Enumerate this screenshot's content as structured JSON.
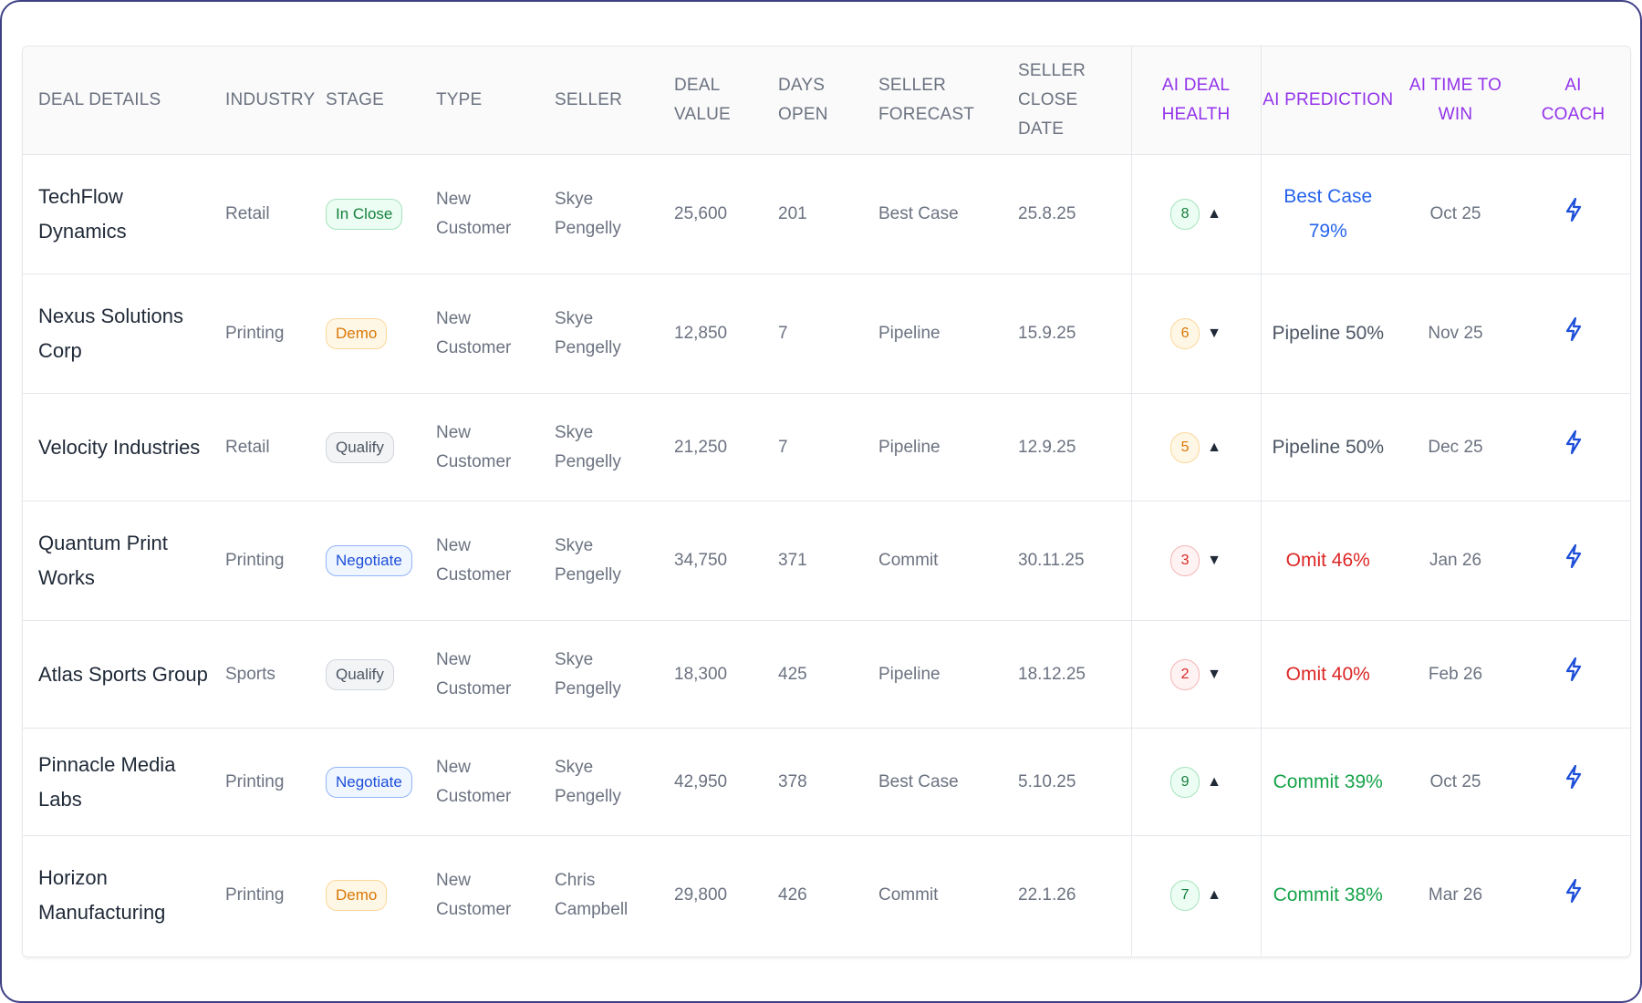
{
  "columns": {
    "deal_details": "DEAL DETAILS",
    "industry": "INDUSTRY",
    "stage": "STAGE",
    "type": "TYPE",
    "seller": "SELLER",
    "deal_value_1": "DEAL",
    "deal_value_2": "VALUE",
    "days_open_1": "DAYS",
    "days_open_2": "OPEN",
    "seller_forecast_1": "SELLER",
    "seller_forecast_2": "FORECAST",
    "seller_close_1": "SELLER CLOSE",
    "seller_close_2": "DATE",
    "ai_health_1": "AI DEAL",
    "ai_health_2": "HEALTH",
    "ai_prediction": "AI PREDICTION",
    "ai_time_1": "AI TIME TO",
    "ai_time_2": "WIN",
    "ai_coach_1": "AI",
    "ai_coach_2": "COACH"
  },
  "colors": {
    "ai_header": "#9333ea",
    "coach_icon": "#1d4ed8",
    "frame_border": "#3f3f86"
  },
  "rows": [
    {
      "deal_1": "TechFlow Dynamics",
      "deal_2": "",
      "industry": "Retail",
      "stage": "In Close",
      "stage_style": "green",
      "type_1": "New",
      "type_2": "Customer",
      "seller_1": "Skye Pengelly",
      "seller_2": "",
      "value": "25,600",
      "days": "201",
      "forecast": "Best Case",
      "close": "25.8.25",
      "health": "8",
      "health_style": "green",
      "trend": "up",
      "trend_glyph": "▲",
      "pred_1": "Best Case",
      "pred_2": "79%",
      "pred_style": "blue",
      "time": "Oct 25",
      "coach_icon": "lightning-bolt-icon"
    },
    {
      "deal_1": "Nexus Solutions",
      "deal_2": "Corp",
      "industry": "Printing",
      "stage": "Demo",
      "stage_style": "amber",
      "type_1": "New",
      "type_2": "Customer",
      "seller_1": "Skye Pengelly",
      "seller_2": "",
      "value": "12,850",
      "days": "7",
      "forecast": "Pipeline",
      "close": "15.9.25",
      "health": "6",
      "health_style": "amber",
      "trend": "down",
      "trend_glyph": "▼",
      "pred_1": "Pipeline 50%",
      "pred_2": "",
      "pred_style": "gray",
      "time": "Nov 25",
      "coach_icon": "lightning-bolt-icon"
    },
    {
      "deal_1": "Velocity Industries",
      "deal_2": "",
      "industry": "Retail",
      "stage": "Qualify",
      "stage_style": "gray",
      "type_1": "New",
      "type_2": "Customer",
      "seller_1": "Skye Pengelly",
      "seller_2": "",
      "value": "21,250",
      "days": "7",
      "forecast": "Pipeline",
      "close": "12.9.25",
      "health": "5",
      "health_style": "amber",
      "trend": "up",
      "trend_glyph": "▲",
      "pred_1": "Pipeline 50%",
      "pred_2": "",
      "pred_style": "gray",
      "time": "Dec 25",
      "coach_icon": "lightning-bolt-icon"
    },
    {
      "deal_1": "Quantum Print",
      "deal_2": "Works",
      "industry": "Printing",
      "stage": "Negotiate",
      "stage_style": "blue",
      "type_1": "New",
      "type_2": "Customer",
      "seller_1": "Skye Pengelly",
      "seller_2": "",
      "value": "34,750",
      "days": "371",
      "forecast": "Commit",
      "close": "30.11.25",
      "health": "3",
      "health_style": "red",
      "trend": "down",
      "trend_glyph": "▼",
      "pred_1": "Omit 46%",
      "pred_2": "",
      "pred_style": "red",
      "time": "Jan 26",
      "coach_icon": "lightning-bolt-icon"
    },
    {
      "deal_1": "Atlas Sports Group",
      "deal_2": "",
      "industry": "Sports",
      "stage": "Qualify",
      "stage_style": "gray",
      "type_1": "New",
      "type_2": "Customer",
      "seller_1": "Skye Pengelly",
      "seller_2": "",
      "value": "18,300",
      "days": "425",
      "forecast": "Pipeline",
      "close": "18.12.25",
      "health": "2",
      "health_style": "red",
      "trend": "down",
      "trend_glyph": "▼",
      "pred_1": "Omit 40%",
      "pred_2": "",
      "pred_style": "red",
      "time": "Feb 26",
      "coach_icon": "lightning-bolt-icon"
    },
    {
      "deal_1": "Pinnacle Media Labs",
      "deal_2": "",
      "industry": "Printing",
      "stage": "Negotiate",
      "stage_style": "blue",
      "type_1": "New",
      "type_2": "Customer",
      "seller_1": "Skye Pengelly",
      "seller_2": "",
      "value": "42,950",
      "days": "378",
      "forecast": "Best Case",
      "close": "5.10.25",
      "health": "9",
      "health_style": "green",
      "trend": "up",
      "trend_glyph": "▲",
      "pred_1": "Commit 39%",
      "pred_2": "",
      "pred_style": "green",
      "time": "Oct 25",
      "coach_icon": "lightning-bolt-icon"
    },
    {
      "deal_1": "Horizon",
      "deal_2": "Manufacturing",
      "industry": "Printing",
      "stage": "Demo",
      "stage_style": "amber",
      "type_1": "New",
      "type_2": "Customer",
      "seller_1": "Chris",
      "seller_2": "Campbell",
      "value": "29,800",
      "days": "426",
      "forecast": "Commit",
      "close": "22.1.26",
      "health": "7",
      "health_style": "green",
      "trend": "up",
      "trend_glyph": "▲",
      "pred_1": "Commit 38%",
      "pred_2": "",
      "pred_style": "green",
      "time": "Mar 26",
      "coach_icon": "lightning-bolt-icon"
    }
  ]
}
